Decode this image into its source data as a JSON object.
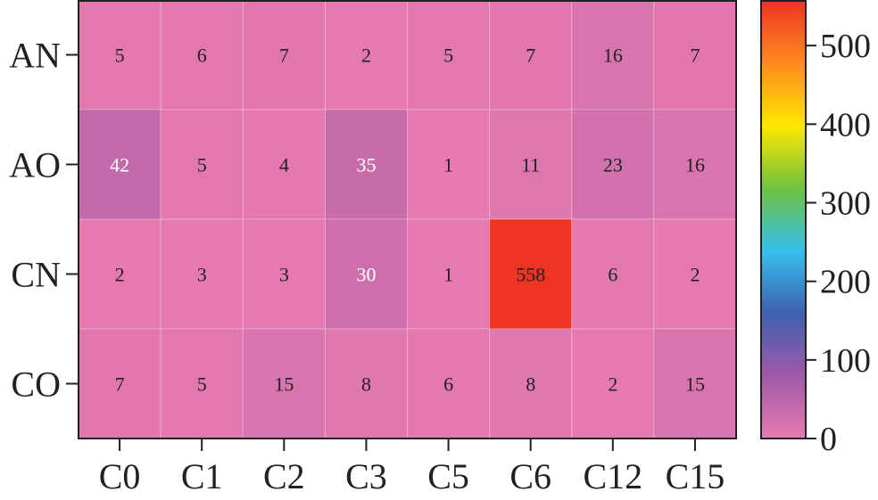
{
  "chart_data": {
    "type": "heatmap",
    "title": "",
    "xlabel": "",
    "ylabel": "",
    "x_categories": [
      "C0",
      "C1",
      "C2",
      "C3",
      "C5",
      "C6",
      "C12",
      "C15"
    ],
    "y_categories": [
      "AN",
      "AO",
      "CN",
      "CO"
    ],
    "values": [
      [
        5,
        6,
        7,
        2,
        5,
        7,
        16,
        7
      ],
      [
        42,
        5,
        4,
        35,
        1,
        11,
        23,
        16
      ],
      [
        2,
        3,
        3,
        30,
        1,
        558,
        6,
        2
      ],
      [
        7,
        5,
        15,
        8,
        6,
        8,
        2,
        15
      ]
    ],
    "colorbar": {
      "min": 0,
      "max": 558,
      "ticks": [
        0,
        100,
        200,
        300,
        400,
        500
      ],
      "tick_labels": [
        "0",
        "100",
        "200",
        "300",
        "400",
        "500"
      ]
    },
    "colors": {
      "colormap": [
        "#e87ab0",
        "#a05aa8",
        "#3f5fb0",
        "#35c0ee",
        "#6fc23f",
        "#ffe800",
        "#ff8a1e",
        "#ee3524"
      ],
      "cell_text_dark": "#222222",
      "cell_text_light": "#ffffff",
      "axis": "#222222"
    },
    "grid": false,
    "legend": "colorbar-right"
  }
}
